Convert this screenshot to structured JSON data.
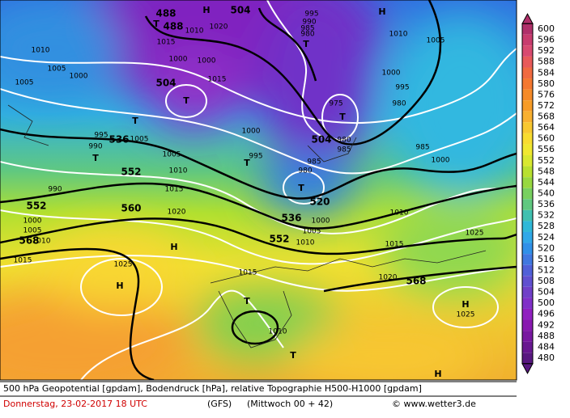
{
  "map": {
    "labels": [
      "488",
      "T",
      "488",
      "H",
      "504",
      "1015",
      "1010",
      "1020",
      "1000",
      "1000",
      "1015",
      "995",
      "990",
      "985",
      "980",
      "T",
      "H",
      "1005",
      "1010",
      "1005",
      "1000",
      "1005",
      "504",
      "T",
      "975",
      "T",
      "980",
      "995",
      "1000",
      "1010",
      "T",
      "536",
      "995",
      "990",
      "1005",
      "1000",
      "504",
      "985",
      "980",
      "985",
      "1000",
      "T",
      "552",
      "995",
      "T",
      "1005",
      "1010",
      "985",
      "980",
      "T",
      "990",
      "1015",
      "552",
      "560",
      "520",
      "1020",
      "1000",
      "1005",
      "1010",
      "568",
      "536",
      "1000",
      "1010",
      "552",
      "1005",
      "1010",
      "1015",
      "1025",
      "H",
      "1015",
      "1025",
      "1015",
      "1020",
      "568",
      "H",
      "H",
      "1025",
      "T",
      "1010",
      "T",
      "H"
    ],
    "colorbar": {
      "values": [
        600,
        596,
        592,
        588,
        584,
        580,
        576,
        572,
        568,
        564,
        560,
        556,
        552,
        548,
        544,
        540,
        536,
        532,
        528,
        524,
        520,
        516,
        512,
        508,
        504,
        500,
        496,
        492,
        488,
        484,
        480
      ],
      "colors": [
        "#b0306a",
        "#c83c6e",
        "#d84a70",
        "#e85a5a",
        "#f06a40",
        "#f47830",
        "#f58a28",
        "#f79c28",
        "#f8b030",
        "#f8c830",
        "#f8dc30",
        "#f0e830",
        "#d8e830",
        "#b8e030",
        "#98d840",
        "#78d060",
        "#60c880",
        "#40c0b0",
        "#30b8d8",
        "#30a8e8",
        "#3090e8",
        "#4078e0",
        "#5060d8",
        "#6050d0",
        "#7040c8",
        "#8030c8",
        "#9020c0",
        "#8818b0",
        "#7818a0",
        "#681890",
        "#581880"
      ]
    },
    "footer": {
      "line1": "500 hPa Geopotential [gpdam], Bodendruck [hPa], relative Topographie H500-H1000 [gpdam]",
      "date": "Donnerstag, 23-02-2017  18 UTC",
      "model": "(GFS)",
      "run": "(Mittwoch 00 + 42)",
      "site": "© www.wetter3.de"
    }
  }
}
